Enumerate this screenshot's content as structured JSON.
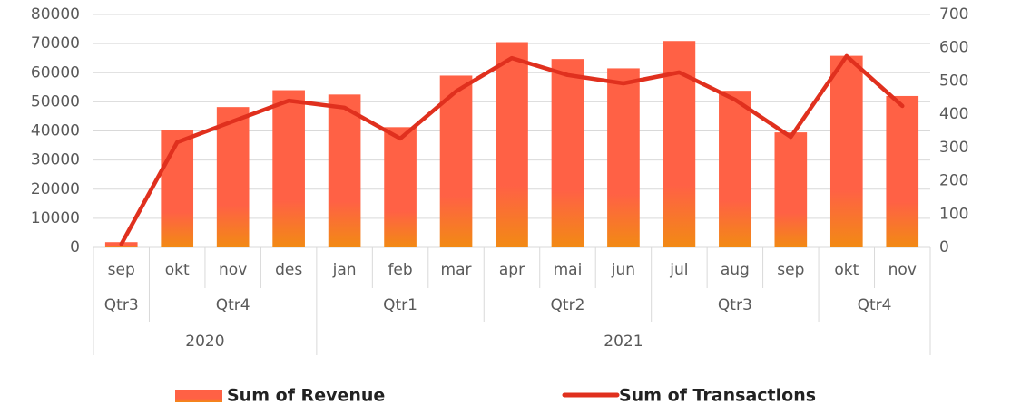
{
  "chart_data": {
    "type": "bar_line",
    "categories": [
      "sep",
      "okt",
      "nov",
      "des",
      "jan",
      "feb",
      "mar",
      "apr",
      "mai",
      "jun",
      "jul",
      "aug",
      "sep",
      "okt",
      "nov"
    ],
    "quarters": [
      "Qtr3",
      "Qtr4",
      null,
      null,
      "Qtr1",
      null,
      null,
      "Qtr2",
      null,
      null,
      "Qtr3",
      null,
      null,
      "Qtr4",
      null
    ],
    "years": [
      "2020",
      null,
      null,
      null,
      "2021",
      null,
      null,
      null,
      null,
      null,
      null,
      null,
      null,
      null,
      null
    ],
    "series": [
      {
        "name": "Sum of Revenue",
        "type": "bar",
        "color": "#ff6145",
        "gradient_end": "#f28a14",
        "axis": "y",
        "values": [
          1800,
          40300,
          48200,
          54000,
          52500,
          41300,
          59000,
          70500,
          64700,
          61500,
          70900,
          53800,
          39500,
          65800,
          52000
        ]
      },
      {
        "name": "Sum of Transactions",
        "type": "line",
        "color": "#e0301e",
        "axis": "y2",
        "values": [
          10,
          316,
          379,
          441,
          420,
          327,
          469,
          569,
          518,
          493,
          526,
          444,
          332,
          575,
          425
        ]
      }
    ],
    "ylim": [
      0,
      80000
    ],
    "yticks": [
      0,
      10000,
      20000,
      30000,
      40000,
      50000,
      60000,
      70000,
      80000
    ],
    "y2lim": [
      0,
      700
    ],
    "y2ticks": [
      0,
      100,
      200,
      300,
      400,
      500,
      600,
      700
    ],
    "grid": true,
    "legend": "bottom"
  }
}
